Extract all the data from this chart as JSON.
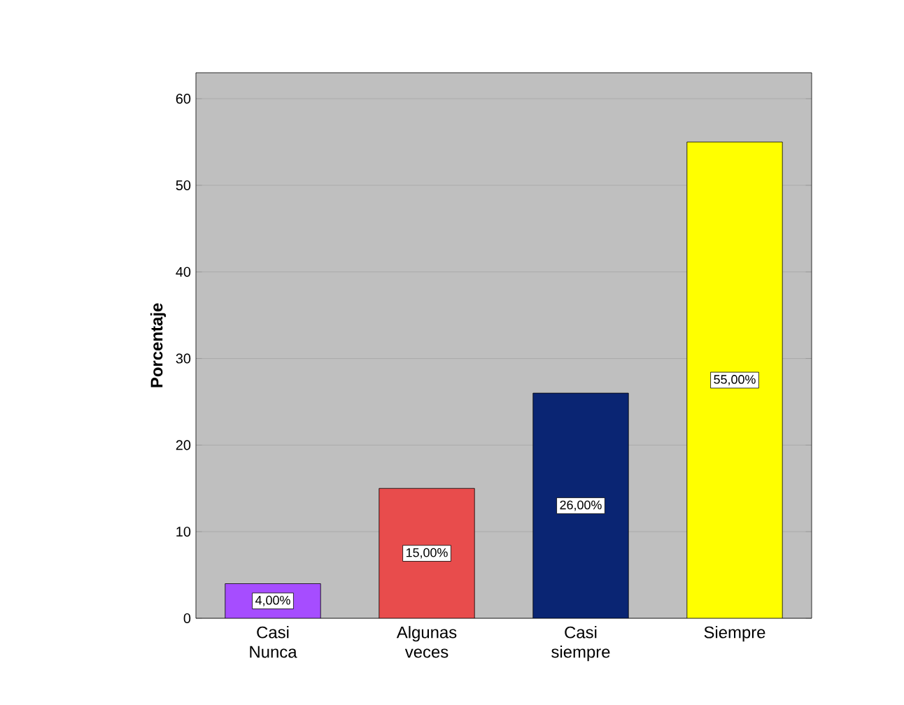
{
  "chart_data": {
    "type": "bar",
    "ylabel": "Porcentaje",
    "categories": [
      "Casi Nunca",
      "Algunas veces",
      "Casi siempre",
      "Siempre"
    ],
    "values": [
      4,
      15,
      26,
      55
    ],
    "colors": [
      "#a64dff",
      "#e84c4c",
      "#0a2573",
      "#ffff00"
    ],
    "value_labels": [
      "4,00%",
      "15,00%",
      "26,00%",
      "55,00%"
    ],
    "ylim": [
      0,
      63
    ],
    "yticks": [
      0,
      10,
      20,
      30,
      40,
      50,
      60
    ],
    "grid": "y"
  }
}
